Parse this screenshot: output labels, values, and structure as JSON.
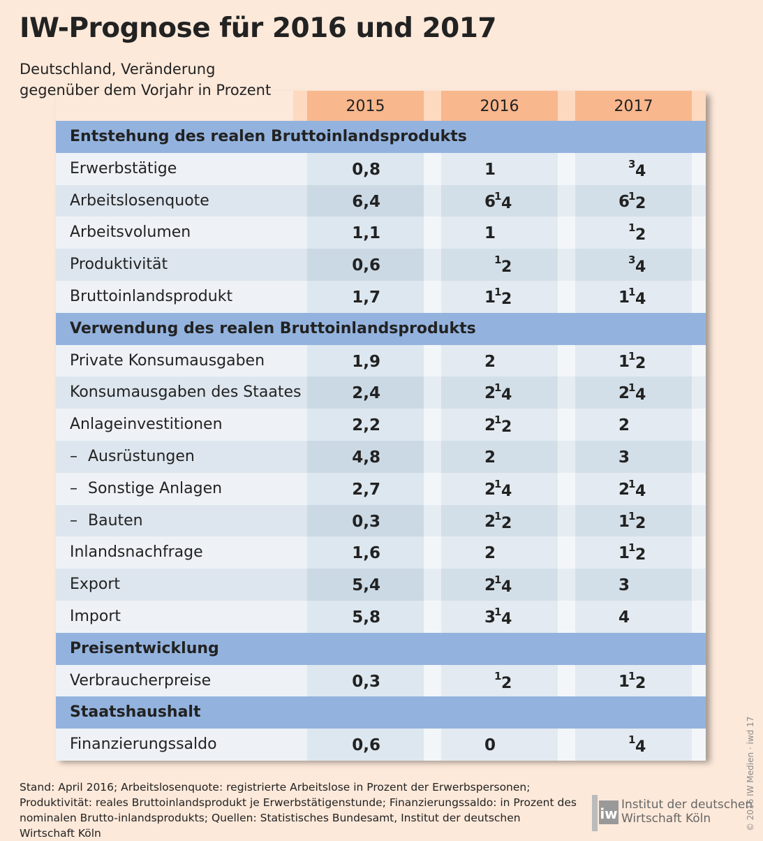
{
  "title": "IW-Prognose für 2016 und 2017",
  "subtitle_line1": "Deutschland, Veränderung",
  "subtitle_line2": "gegenüber dem Vorjahr in Prozent",
  "years": [
    "2015",
    "2016",
    "2017"
  ],
  "rows": [
    {
      "type": "section",
      "label": "Entstehung des realen Bruttoinlandsprodukts"
    },
    {
      "type": "data",
      "label": "Erwerbstätige",
      "v2015": "0,8",
      "v2016": {
        "whole": "1"
      },
      "v2017": {
        "whole": "",
        "num": "3",
        "den": "4"
      }
    },
    {
      "type": "data",
      "label": "Arbeitslosenquote",
      "v2015": "6,4",
      "v2016": {
        "whole": "6",
        "num": "1",
        "den": "4"
      },
      "v2017": {
        "whole": "6",
        "num": "1",
        "den": "2"
      }
    },
    {
      "type": "data",
      "label": "Arbeitsvolumen",
      "v2015": "1,1",
      "v2016": {
        "whole": "1"
      },
      "v2017": {
        "whole": "",
        "num": "1",
        "den": "2"
      }
    },
    {
      "type": "data",
      "label": "Produktivität",
      "v2015": "0,6",
      "v2016": {
        "whole": "",
        "num": "1",
        "den": "2"
      },
      "v2017": {
        "whole": "",
        "num": "3",
        "den": "4"
      }
    },
    {
      "type": "data",
      "label": "Bruttoinlandsprodukt",
      "v2015": "1,7",
      "v2016": {
        "whole": "1",
        "num": "1",
        "den": "2"
      },
      "v2017": {
        "whole": "1",
        "num": "1",
        "den": "4"
      }
    },
    {
      "type": "section",
      "label": "Verwendung des realen Bruttoinlandsprodukts"
    },
    {
      "type": "data",
      "label": "Private Konsumausgaben",
      "v2015": "1,9",
      "v2016": {
        "whole": "2"
      },
      "v2017": {
        "whole": "1",
        "num": "1",
        "den": "2"
      }
    },
    {
      "type": "data",
      "label": "Konsumausgaben des Staates",
      "v2015": "2,4",
      "v2016": {
        "whole": "2",
        "num": "1",
        "den": "4"
      },
      "v2017": {
        "whole": "2",
        "num": "1",
        "den": "4"
      }
    },
    {
      "type": "data",
      "label": "Anlageinvestitionen",
      "v2015": "2,2",
      "v2016": {
        "whole": "2",
        "num": "1",
        "den": "2"
      },
      "v2017": {
        "whole": "2"
      }
    },
    {
      "type": "data",
      "label": "Ausrüstungen",
      "dash": "–",
      "v2015": "4,8",
      "v2016": {
        "whole": "2"
      },
      "v2017": {
        "whole": "3"
      }
    },
    {
      "type": "data",
      "label": "Sonstige Anlagen",
      "dash": "–",
      "v2015": "2,7",
      "v2016": {
        "whole": "2",
        "num": "1",
        "den": "4"
      },
      "v2017": {
        "whole": "2",
        "num": "1",
        "den": "4"
      }
    },
    {
      "type": "data",
      "label": "Bauten",
      "dash": "–",
      "v2015": "0,3",
      "v2016": {
        "whole": "2",
        "num": "1",
        "den": "2"
      },
      "v2017": {
        "whole": "1",
        "num": "1",
        "den": "2"
      }
    },
    {
      "type": "data",
      "label": "Inlandsnachfrage",
      "v2015": "1,6",
      "v2016": {
        "whole": "2"
      },
      "v2017": {
        "whole": "1",
        "num": "1",
        "den": "2"
      }
    },
    {
      "type": "data",
      "label": "Export",
      "v2015": "5,4",
      "v2016": {
        "whole": "2",
        "num": "1",
        "den": "4"
      },
      "v2017": {
        "whole": "3"
      }
    },
    {
      "type": "data",
      "label": "Import",
      "v2015": "5,8",
      "v2016": {
        "whole": "3",
        "num": "1",
        "den": "4"
      },
      "v2017": {
        "whole": "4"
      }
    },
    {
      "type": "section",
      "label": "Preisentwicklung"
    },
    {
      "type": "data",
      "label": "Verbraucherpreise",
      "v2015": "0,3",
      "v2016": {
        "whole": "",
        "num": "1",
        "den": "2"
      },
      "v2017": {
        "whole": "1",
        "num": "1",
        "den": "2"
      }
    },
    {
      "type": "section",
      "label": "Staatshaushalt"
    },
    {
      "type": "data",
      "label": "Finanzierungssaldo",
      "v2015": "0,6",
      "v2016": {
        "whole": "0"
      },
      "v2017": {
        "whole": "",
        "num": "1",
        "den": "4"
      }
    }
  ],
  "footnote": "Stand: April 2016; Arbeitslosenquote: registrierte Arbeitslose in Prozent der Erwerbspersonen; Produktivität: reales Bruttoinlandsprodukt je Erwerbstätigenstunde; Finanzierungssaldo: in Prozent des nominalen Brutto-inlandsprodukts; Quellen: Statistisches Bundesamt, Institut der deutschen Wirtschaft Köln",
  "logo_mark": "iw",
  "logo_line1": "Institut der deutschen",
  "logo_line2": "Wirtschaft Köln",
  "credit": "© 2016 IW Medien · iwd 17",
  "colors": {
    "background": "#fde9da",
    "header": "#f8b78d",
    "section": "#93b3de"
  }
}
